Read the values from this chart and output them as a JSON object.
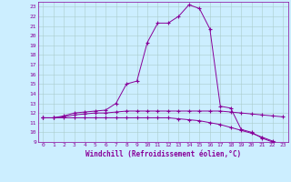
{
  "xlabel": "Windchill (Refroidissement éolien,°C)",
  "xlim": [
    -0.5,
    23.5
  ],
  "ylim": [
    9,
    23.5
  ],
  "xticks": [
    0,
    1,
    2,
    3,
    4,
    5,
    6,
    7,
    8,
    9,
    10,
    11,
    12,
    13,
    14,
    15,
    16,
    17,
    18,
    19,
    20,
    21,
    22,
    23
  ],
  "yticks": [
    9,
    10,
    11,
    12,
    13,
    14,
    15,
    16,
    17,
    18,
    19,
    20,
    21,
    22,
    23
  ],
  "background_color": "#cceeff",
  "grid_color": "#aacccc",
  "line_color": "#880099",
  "line1_x": [
    0,
    1,
    2,
    3,
    4,
    5,
    6,
    7,
    8,
    9,
    10,
    11,
    12,
    13,
    14,
    15,
    16,
    17,
    18,
    19,
    20,
    21,
    22,
    23
  ],
  "line1_y": [
    11.5,
    11.5,
    11.7,
    12.0,
    12.1,
    12.2,
    12.3,
    13.0,
    15.0,
    15.3,
    19.3,
    21.3,
    21.3,
    22.0,
    23.2,
    22.8,
    20.7,
    12.7,
    12.5,
    10.3,
    10.0,
    9.4,
    9.0,
    8.7
  ],
  "line2_x": [
    0,
    1,
    2,
    3,
    4,
    5,
    6,
    7,
    8,
    9,
    10,
    11,
    12,
    13,
    14,
    15,
    16,
    17,
    18,
    19,
    20,
    21,
    22,
    23
  ],
  "line2_y": [
    11.5,
    11.5,
    11.6,
    11.8,
    11.9,
    12.0,
    12.0,
    12.1,
    12.2,
    12.2,
    12.2,
    12.2,
    12.2,
    12.2,
    12.2,
    12.2,
    12.2,
    12.2,
    12.1,
    12.0,
    11.9,
    11.8,
    11.7,
    11.6
  ],
  "line3_x": [
    0,
    1,
    2,
    3,
    4,
    5,
    6,
    7,
    8,
    9,
    10,
    11,
    12,
    13,
    14,
    15,
    16,
    17,
    18,
    19,
    20,
    21,
    22,
    23
  ],
  "line3_y": [
    11.5,
    11.5,
    11.5,
    11.5,
    11.5,
    11.5,
    11.5,
    11.5,
    11.5,
    11.5,
    11.5,
    11.5,
    11.5,
    11.4,
    11.3,
    11.2,
    11.0,
    10.8,
    10.5,
    10.2,
    9.9,
    9.5,
    9.1,
    8.7
  ],
  "tick_fontsize": 4.5,
  "xlabel_fontsize": 5.5,
  "marker_size": 3,
  "linewidth": 0.7
}
